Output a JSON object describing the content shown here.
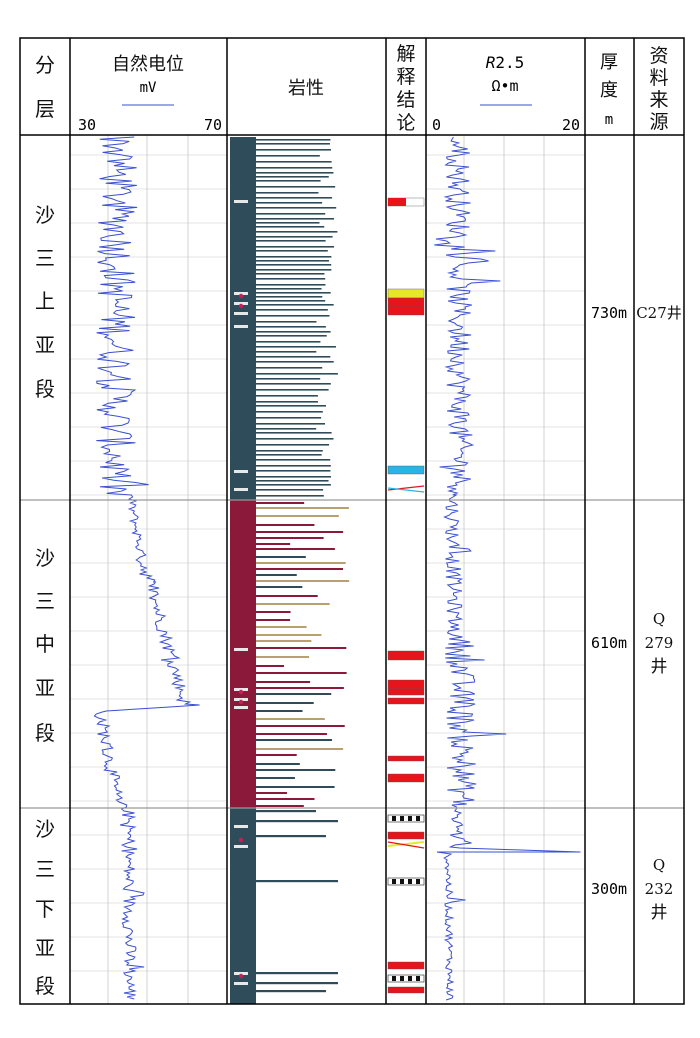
{
  "headers": {
    "layer": "分层",
    "sp_title": "自然电位",
    "sp_unit": "mV",
    "sp_min": "30",
    "sp_max": "70",
    "lithology": "岩性",
    "interpretation": "解释结论",
    "res_title_italic": "R",
    "res_title_rest": "2.5",
    "res_unit": "Ω•m",
    "res_min": "0",
    "res_max": "20",
    "thickness": "厚度",
    "thickness_unit": "m",
    "source": "资料来源"
  },
  "sections": [
    {
      "name": "沙三上亚段",
      "thickness": "730m",
      "source": "C27井"
    },
    {
      "name": "沙三中亚段",
      "thickness": "610m",
      "source": "Q 279 井"
    },
    {
      "name": "沙三下亚段",
      "thickness": "300m",
      "source": "Q 232 井"
    }
  ],
  "colors": {
    "curve": "#3a4fd0",
    "shale": "#2e4c5a",
    "red_bed": "#8b1a3a",
    "sand_tan": "#b8a070",
    "interp_red": "#e8141c",
    "interp_yellow": "#e6e62a",
    "interp_cyan": "#28b4e6",
    "grid": "#c8c8c8"
  }
}
